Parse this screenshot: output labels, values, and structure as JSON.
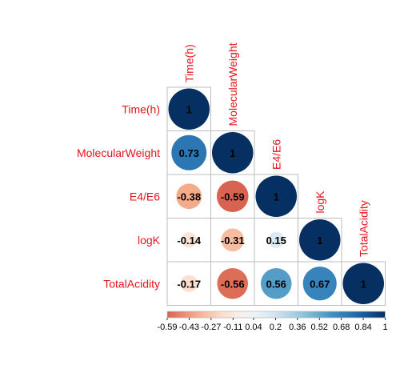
{
  "chart_data": {
    "type": "heatmap",
    "style": "correlation-circles-lower-triangle",
    "variables": [
      "Time(h)",
      "MolecularWeight",
      "E4/E6",
      "logK",
      "TotalAcidity"
    ],
    "matrix": [
      [
        1,
        0.73,
        -0.38,
        -0.14,
        -0.17
      ],
      [
        0.73,
        1,
        -0.59,
        -0.31,
        -0.56
      ],
      [
        -0.38,
        -0.59,
        1,
        0.15,
        0.56
      ],
      [
        -0.14,
        -0.31,
        0.15,
        1,
        0.67
      ],
      [
        -0.17,
        -0.56,
        0.56,
        0.67,
        1
      ]
    ],
    "cells": [
      {
        "row": 0,
        "col": 0,
        "value": 1,
        "label": "1"
      },
      {
        "row": 1,
        "col": 0,
        "value": 0.73,
        "label": "0.73"
      },
      {
        "row": 1,
        "col": 1,
        "value": 1,
        "label": "1"
      },
      {
        "row": 2,
        "col": 0,
        "value": -0.38,
        "label": "-0.38"
      },
      {
        "row": 2,
        "col": 1,
        "value": -0.59,
        "label": "-0.59"
      },
      {
        "row": 2,
        "col": 2,
        "value": 1,
        "label": "1"
      },
      {
        "row": 3,
        "col": 0,
        "value": -0.14,
        "label": "-0.14"
      },
      {
        "row": 3,
        "col": 1,
        "value": -0.31,
        "label": "-0.31"
      },
      {
        "row": 3,
        "col": 2,
        "value": 0.15,
        "label": "0.15"
      },
      {
        "row": 3,
        "col": 3,
        "value": 1,
        "label": "1"
      },
      {
        "row": 4,
        "col": 0,
        "value": -0.17,
        "label": "-0.17"
      },
      {
        "row": 4,
        "col": 1,
        "value": -0.56,
        "label": "-0.56"
      },
      {
        "row": 4,
        "col": 2,
        "value": 0.56,
        "label": "0.56"
      },
      {
        "row": 4,
        "col": 3,
        "value": 0.67,
        "label": "0.67"
      },
      {
        "row": 4,
        "col": 4,
        "value": 1,
        "label": "1"
      }
    ],
    "colorbar": {
      "range": [
        -0.59,
        1
      ],
      "ticks": [
        {
          "value": -0.59,
          "label": "-0.59"
        },
        {
          "value": -0.43,
          "label": "-0.43"
        },
        {
          "value": -0.27,
          "label": "-0.27"
        },
        {
          "value": -0.11,
          "label": "-0.11"
        },
        {
          "value": 0.04,
          "label": "0.04"
        },
        {
          "value": 0.2,
          "label": "0.2"
        },
        {
          "value": 0.36,
          "label": "0.36"
        },
        {
          "value": 0.52,
          "label": "0.52"
        },
        {
          "value": 0.68,
          "label": "0.68"
        },
        {
          "value": 0.84,
          "label": "0.84"
        },
        {
          "value": 1,
          "label": "1"
        }
      ],
      "position": "bottom"
    },
    "colors": {
      "palette": [
        "#67001f",
        "#b2182b",
        "#d6604d",
        "#f4a582",
        "#fddbc7",
        "#f7f7f7",
        "#d1e5f0",
        "#92c5de",
        "#4393c3",
        "#2166ac",
        "#053061"
      ],
      "label": "#e8141e",
      "grid": "#bdbdbd"
    }
  }
}
